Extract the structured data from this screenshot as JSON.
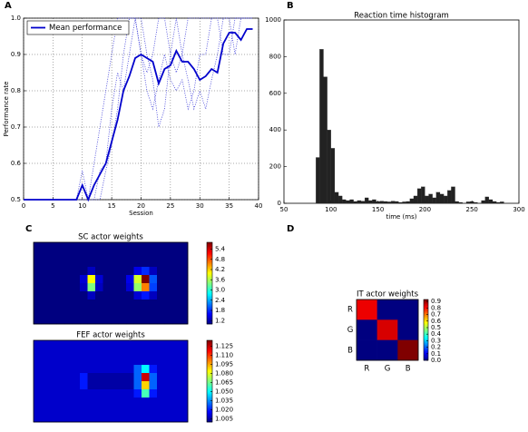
{
  "chart_data": [
    {
      "type": "line",
      "panel_label": "A",
      "xlabel": "Session",
      "ylabel": "Performance rate",
      "x": [
        0,
        1,
        2,
        3,
        4,
        5,
        6,
        7,
        8,
        9,
        10,
        11,
        12,
        13,
        14,
        15,
        16,
        17,
        18,
        19,
        20,
        21,
        22,
        23,
        24,
        25,
        26,
        27,
        28,
        29,
        30,
        31,
        32,
        33,
        34,
        35,
        36,
        37,
        38,
        39
      ],
      "series": [
        {
          "style": "dotted",
          "color": "#3a3ad8",
          "values": [
            0.5,
            0.5,
            0.5,
            0.5,
            0.5,
            0.5,
            0.5,
            0.5,
            0.5,
            0.5,
            0.58,
            0.5,
            0.6,
            0.7,
            0.8,
            0.9,
            1,
            1,
            1,
            1,
            0.9,
            0.85,
            0.9,
            1,
            1,
            0.9,
            0.85,
            0.9,
            1,
            1,
            1,
            1,
            1,
            1,
            1,
            1,
            1,
            1,
            1,
            1
          ]
        },
        {
          "style": "dotted",
          "color": "#3a3ad8",
          "values": [
            0.5,
            0.5,
            0.5,
            0.5,
            0.5,
            0.5,
            0.5,
            0.5,
            0.5,
            0.5,
            0.5,
            0.5,
            0.5,
            0.58,
            0.6,
            0.75,
            0.85,
            0.8,
            0.9,
            1,
            0.9,
            0.8,
            0.75,
            0.83,
            0.9,
            0.83,
            0.8,
            0.83,
            0.75,
            0.8,
            0.9,
            0.9,
            1,
            1,
            0.9,
            0.9,
            1,
            1,
            1,
            1
          ]
        },
        {
          "style": "dotted",
          "color": "#3a3ad8",
          "values": [
            0.5,
            0.5,
            0.5,
            0.5,
            0.5,
            0.5,
            0.5,
            0.5,
            0.5,
            0.5,
            0.5,
            0.5,
            0.5,
            0.5,
            0.58,
            0.65,
            0.75,
            0.9,
            1,
            1,
            1,
            0.9,
            0.83,
            0.7,
            0.75,
            0.9,
            1,
            0.9,
            0.83,
            0.75,
            0.8,
            0.75,
            0.83,
            0.9,
            1,
            1,
            0.9,
            1,
            1,
            1
          ]
        },
        {
          "name": "Mean performance",
          "style": "solid",
          "color": "#0000cc",
          "values": [
            0.5,
            0.5,
            0.5,
            0.5,
            0.5,
            0.5,
            0.5,
            0.5,
            0.5,
            0.5,
            0.54,
            0.5,
            0.54,
            0.57,
            0.6,
            0.66,
            0.72,
            0.8,
            0.84,
            0.89,
            0.9,
            0.89,
            0.88,
            0.82,
            0.86,
            0.87,
            0.91,
            0.88,
            0.88,
            0.86,
            0.83,
            0.84,
            0.86,
            0.85,
            0.93,
            0.96,
            0.96,
            0.94,
            0.97,
            0.97
          ]
        }
      ],
      "xlim": [
        0,
        40
      ],
      "xticks": [
        0,
        5,
        10,
        15,
        20,
        25,
        30,
        35,
        40
      ],
      "ylim": [
        0.5,
        1.0
      ],
      "yticks": [
        0.5,
        0.6,
        0.7,
        0.8,
        0.9,
        {
          "value": 1,
          "label": "1.0"
        }
      ],
      "grid": true,
      "legend": "upper left"
    },
    {
      "type": "histogram",
      "panel_label": "B",
      "title": "Reaction time histogram",
      "xlabel": "time (ms)",
      "color": "#222222",
      "bins": [
        84,
        88,
        92,
        96,
        100,
        104,
        108,
        112,
        116,
        120,
        124,
        128,
        132,
        136,
        140,
        144,
        148,
        152,
        156,
        160,
        164,
        168,
        172,
        176,
        180,
        184,
        188,
        192,
        196,
        200,
        204,
        208,
        212,
        216,
        220,
        224,
        228,
        232,
        236,
        240,
        244,
        248,
        252,
        256,
        260,
        264,
        268,
        272,
        276,
        280,
        284
      ],
      "counts": [
        250,
        840,
        690,
        400,
        300,
        60,
        40,
        20,
        15,
        20,
        10,
        15,
        12,
        30,
        15,
        20,
        10,
        12,
        10,
        8,
        12,
        10,
        5,
        8,
        10,
        25,
        40,
        80,
        90,
        40,
        50,
        30,
        60,
        50,
        40,
        70,
        90,
        10,
        5,
        0,
        8,
        10,
        5,
        0,
        15,
        35,
        20,
        10,
        5,
        8
      ],
      "xlim": [
        50,
        300
      ],
      "xticks": [
        50,
        100,
        150,
        200,
        250,
        300
      ],
      "ylim": [
        0,
        1000
      ],
      "yticks": [
        0,
        200,
        400,
        600,
        800,
        1000
      ],
      "grid": false
    },
    {
      "type": "heatmap",
      "panel_label": "C",
      "title": "SC actor weights",
      "colormap": "jet",
      "clim": [
        1.0,
        5.8
      ],
      "cticks": [
        1.2,
        1.8,
        2.4,
        {
          "value": 3,
          "label": "3.0"
        },
        3.6,
        4.2,
        4.8,
        5.4
      ],
      "values": [
        [
          1,
          1,
          1,
          1,
          1,
          1,
          1,
          1,
          1,
          1,
          1,
          1,
          1,
          1,
          1,
          1,
          1,
          1,
          1,
          1
        ],
        [
          1,
          1,
          1,
          1,
          1,
          1,
          1,
          1,
          1,
          1,
          1,
          1,
          1,
          1,
          1,
          1,
          1,
          1,
          1,
          1
        ],
        [
          1,
          1,
          1,
          1,
          1,
          1,
          1,
          1,
          1,
          1,
          1,
          1,
          1,
          1,
          1,
          1,
          1,
          1,
          1,
          1
        ],
        [
          1,
          1,
          1,
          1,
          1,
          1,
          1,
          1.3,
          1,
          1,
          1,
          1,
          1,
          1.5,
          1.8,
          1.3,
          1,
          1,
          1,
          1
        ],
        [
          1,
          1,
          1,
          1,
          1,
          1,
          1.4,
          4,
          1.4,
          1,
          1,
          1,
          1.5,
          3.8,
          5.8,
          2,
          1,
          1,
          1,
          1
        ],
        [
          1,
          1,
          1,
          1,
          1,
          1,
          1.3,
          3.4,
          1.3,
          1,
          1,
          1,
          1.4,
          3.5,
          4.6,
          1.9,
          1,
          1,
          1,
          1
        ],
        [
          1,
          1,
          1,
          1,
          1,
          1,
          1,
          1.3,
          1,
          1,
          1,
          1,
          1,
          1.4,
          1.7,
          1.3,
          1,
          1,
          1,
          1
        ],
        [
          1,
          1,
          1,
          1,
          1,
          1,
          1,
          1,
          1,
          1,
          1,
          1,
          1,
          1,
          1,
          1,
          1,
          1,
          1,
          1
        ],
        [
          1,
          1,
          1,
          1,
          1,
          1,
          1,
          1,
          1,
          1,
          1,
          1,
          1,
          1,
          1,
          1,
          1,
          1,
          1,
          1
        ],
        [
          1,
          1,
          1,
          1,
          1,
          1,
          1,
          1,
          1,
          1,
          1,
          1,
          1,
          1,
          1,
          1,
          1,
          1,
          1,
          1
        ]
      ]
    },
    {
      "type": "heatmap",
      "title": "FEF actor weights",
      "colormap": "jet",
      "clim": [
        1.0,
        1.135
      ],
      "cticks": [
        1.005,
        {
          "value": 1.02,
          "label": "1.020"
        },
        1.035,
        {
          "value": 1.05,
          "label": "1.050"
        },
        1.065,
        {
          "value": 1.08,
          "label": "1.080"
        },
        1.095,
        {
          "value": 1.11,
          "label": "1.110"
        },
        1.125
      ],
      "values": [
        [
          1.01,
          1.01,
          1.01,
          1.01,
          1.01,
          1.01,
          1.01,
          1.01,
          1.01,
          1.01,
          1.01,
          1.01,
          1.01,
          1.01,
          1.01,
          1.01,
          1.01,
          1.01,
          1.01,
          1.01
        ],
        [
          1.01,
          1.01,
          1.01,
          1.01,
          1.01,
          1.01,
          1.01,
          1.01,
          1.01,
          1.01,
          1.01,
          1.01,
          1.01,
          1.01,
          1.01,
          1.01,
          1.01,
          1.01,
          1.01,
          1.01
        ],
        [
          1.01,
          1.01,
          1.01,
          1.01,
          1.01,
          1.01,
          1.01,
          1.01,
          1.01,
          1.01,
          1.01,
          1.01,
          1.01,
          1.01,
          1.01,
          1.01,
          1.01,
          1.01,
          1.01,
          1.01
        ],
        [
          1.01,
          1.01,
          1.01,
          1.01,
          1.01,
          1.01,
          1.01,
          1.01,
          1.01,
          1.01,
          1.01,
          1.01,
          1.01,
          1.03,
          1.05,
          1.02,
          1.01,
          1.01,
          1.01,
          1.01
        ],
        [
          1.01,
          1.01,
          1.01,
          1.01,
          1.01,
          1.01,
          1.02,
          1.005,
          1.005,
          1.005,
          1.005,
          1.005,
          1.005,
          1.03,
          1.125,
          1.03,
          1.01,
          1.01,
          1.01,
          1.01
        ],
        [
          1.01,
          1.01,
          1.01,
          1.01,
          1.01,
          1.01,
          1.02,
          1.005,
          1.005,
          1.005,
          1.005,
          1.005,
          1.005,
          1.03,
          1.09,
          1.03,
          1.01,
          1.01,
          1.01,
          1.01
        ],
        [
          1.01,
          1.01,
          1.01,
          1.01,
          1.01,
          1.01,
          1.01,
          1.01,
          1.01,
          1.01,
          1.01,
          1.01,
          1.01,
          1.02,
          1.06,
          1.02,
          1.01,
          1.01,
          1.01,
          1.01
        ],
        [
          1.01,
          1.01,
          1.01,
          1.01,
          1.01,
          1.01,
          1.01,
          1.01,
          1.01,
          1.01,
          1.01,
          1.01,
          1.01,
          1.01,
          1.01,
          1.01,
          1.01,
          1.01,
          1.01,
          1.01
        ],
        [
          1.01,
          1.01,
          1.01,
          1.01,
          1.01,
          1.01,
          1.01,
          1.01,
          1.01,
          1.01,
          1.01,
          1.01,
          1.01,
          1.01,
          1.01,
          1.01,
          1.01,
          1.01,
          1.01,
          1.01
        ],
        [
          1.01,
          1.01,
          1.01,
          1.01,
          1.01,
          1.01,
          1.01,
          1.01,
          1.01,
          1.01,
          1.01,
          1.01,
          1.01,
          1.01,
          1.01,
          1.01,
          1.01,
          1.01,
          1.01,
          1.01
        ]
      ]
    },
    {
      "type": "heatmap",
      "panel_label": "D",
      "title": "IT actor weights",
      "colormap": "jet",
      "clim": [
        0,
        0.93
      ],
      "cticks": [
        {
          "value": 0,
          "label": "0.0"
        },
        0.1,
        0.2,
        0.3,
        0.4,
        0.5,
        0.6,
        0.7,
        0.8,
        0.9
      ],
      "row_labels": [
        "R",
        "G",
        "B"
      ],
      "col_labels": [
        "R",
        "G",
        "B"
      ],
      "values": [
        [
          0.83,
          0,
          0
        ],
        [
          0,
          0.85,
          0
        ],
        [
          0,
          0,
          0.93
        ]
      ]
    }
  ]
}
